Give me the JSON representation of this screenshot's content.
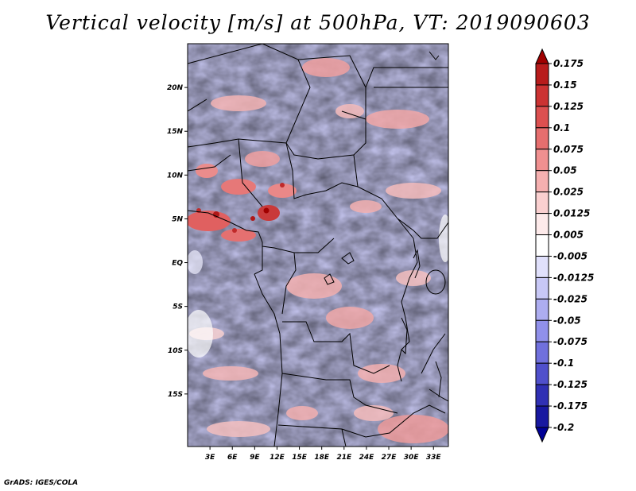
{
  "chart_data": {
    "type": "heatmap",
    "title": "Vertical velocity [m/s] at 500hPa, VT: 2019090603",
    "variable": "Vertical velocity",
    "units": "m/s",
    "level": "500hPa",
    "valid_time": "2019090603",
    "lon_range": [
      0,
      35
    ],
    "lat_range": [
      -21,
      25
    ],
    "x_ticks": [
      {
        "value": 3,
        "label": "3E"
      },
      {
        "value": 6,
        "label": "6E"
      },
      {
        "value": 9,
        "label": "9E"
      },
      {
        "value": 12,
        "label": "12E"
      },
      {
        "value": 15,
        "label": "15E"
      },
      {
        "value": 18,
        "label": "18E"
      },
      {
        "value": 21,
        "label": "21E"
      },
      {
        "value": 24,
        "label": "24E"
      },
      {
        "value": 27,
        "label": "27E"
      },
      {
        "value": 30,
        "label": "30E"
      },
      {
        "value": 33,
        "label": "33E"
      }
    ],
    "y_ticks": [
      {
        "value": 20,
        "label": "20N"
      },
      {
        "value": 15,
        "label": "15N"
      },
      {
        "value": 10,
        "label": "10N"
      },
      {
        "value": 5,
        "label": "5N"
      },
      {
        "value": 0,
        "label": "EQ"
      },
      {
        "value": -5,
        "label": "5S"
      },
      {
        "value": -10,
        "label": "10S"
      },
      {
        "value": -15,
        "label": "15S"
      }
    ],
    "colorbar": {
      "levels": [
        "0.175",
        "0.15",
        "0.125",
        "0.1",
        "0.075",
        "0.05",
        "0.025",
        "0.0125",
        "0.005",
        "-0.005",
        "-0.0125",
        "-0.025",
        "-0.05",
        "-0.075",
        "-0.1",
        "-0.125",
        "-0.175",
        "-0.2"
      ],
      "colors": [
        "#a00000",
        "#b81c1c",
        "#cc3333",
        "#dc5050",
        "#e66e6e",
        "#f09090",
        "#f5b0b0",
        "#fad0d0",
        "#fdeaea",
        "#ffffff",
        "#e0e0fb",
        "#c8c8f6",
        "#adadf0",
        "#9090ea",
        "#7070dd",
        "#5050cc",
        "#3030b4",
        "#1818a0",
        "#000096"
      ]
    }
  },
  "footer": "GrADS: IGES/COLA"
}
